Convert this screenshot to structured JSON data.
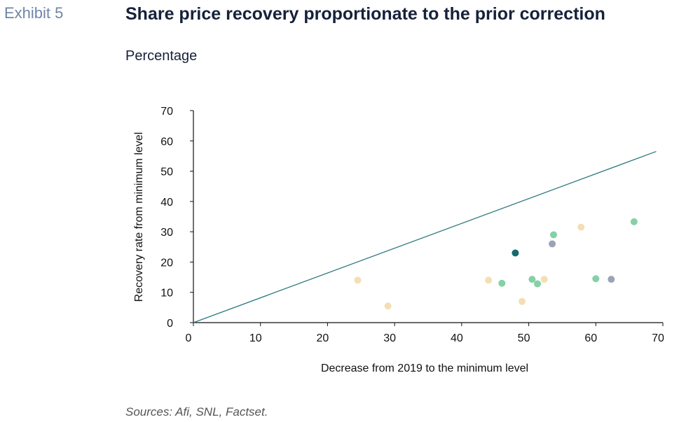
{
  "header": {
    "exhibit": "Exhibit 5",
    "title": "Share price recovery proportionate to the prior correction",
    "subtitle": "Percentage"
  },
  "footer": {
    "source": "Sources: Afi, SNL, Factset."
  },
  "chart_data": {
    "type": "scatter",
    "xlabel": "Decrease from 2019 to the minimum level",
    "ylabel": "Recovery rate from minimum level",
    "xlim": [
      0,
      70
    ],
    "ylim": [
      0,
      70
    ],
    "x_ticks": [
      "0",
      "10",
      "20",
      "30",
      "40",
      "50",
      "60",
      "70"
    ],
    "y_ticks": [
      "0",
      "10",
      "20",
      "30",
      "40",
      "50",
      "60",
      "70"
    ],
    "grid": false,
    "trend_line": {
      "color": "#2e7b80",
      "points": [
        [
          0,
          0
        ],
        [
          69,
          56.5
        ]
      ]
    },
    "points": [
      {
        "x": 24.5,
        "y": 14.0,
        "color": "#f3dfb3"
      },
      {
        "x": 29.0,
        "y": 5.5,
        "color": "#f3dfb3"
      },
      {
        "x": 44.0,
        "y": 14.0,
        "color": "#f3dfb3"
      },
      {
        "x": 46.0,
        "y": 13.0,
        "color": "#86d0a6"
      },
      {
        "x": 48.0,
        "y": 23.0,
        "color": "#146b6e"
      },
      {
        "x": 49.0,
        "y": 7.0,
        "color": "#f3dfb3"
      },
      {
        "x": 50.5,
        "y": 14.3,
        "color": "#86d0a6"
      },
      {
        "x": 51.3,
        "y": 12.8,
        "color": "#86d0a6"
      },
      {
        "x": 52.3,
        "y": 14.3,
        "color": "#f3dfb3"
      },
      {
        "x": 53.5,
        "y": 26.0,
        "color": "#9aa3b8"
      },
      {
        "x": 53.7,
        "y": 29.0,
        "color": "#86d0a6"
      },
      {
        "x": 57.8,
        "y": 31.5,
        "color": "#f3dfb3"
      },
      {
        "x": 60.0,
        "y": 14.5,
        "color": "#86d0a6"
      },
      {
        "x": 62.3,
        "y": 14.3,
        "color": "#9aa3b8"
      },
      {
        "x": 65.7,
        "y": 33.3,
        "color": "#86d0a6"
      }
    ]
  }
}
